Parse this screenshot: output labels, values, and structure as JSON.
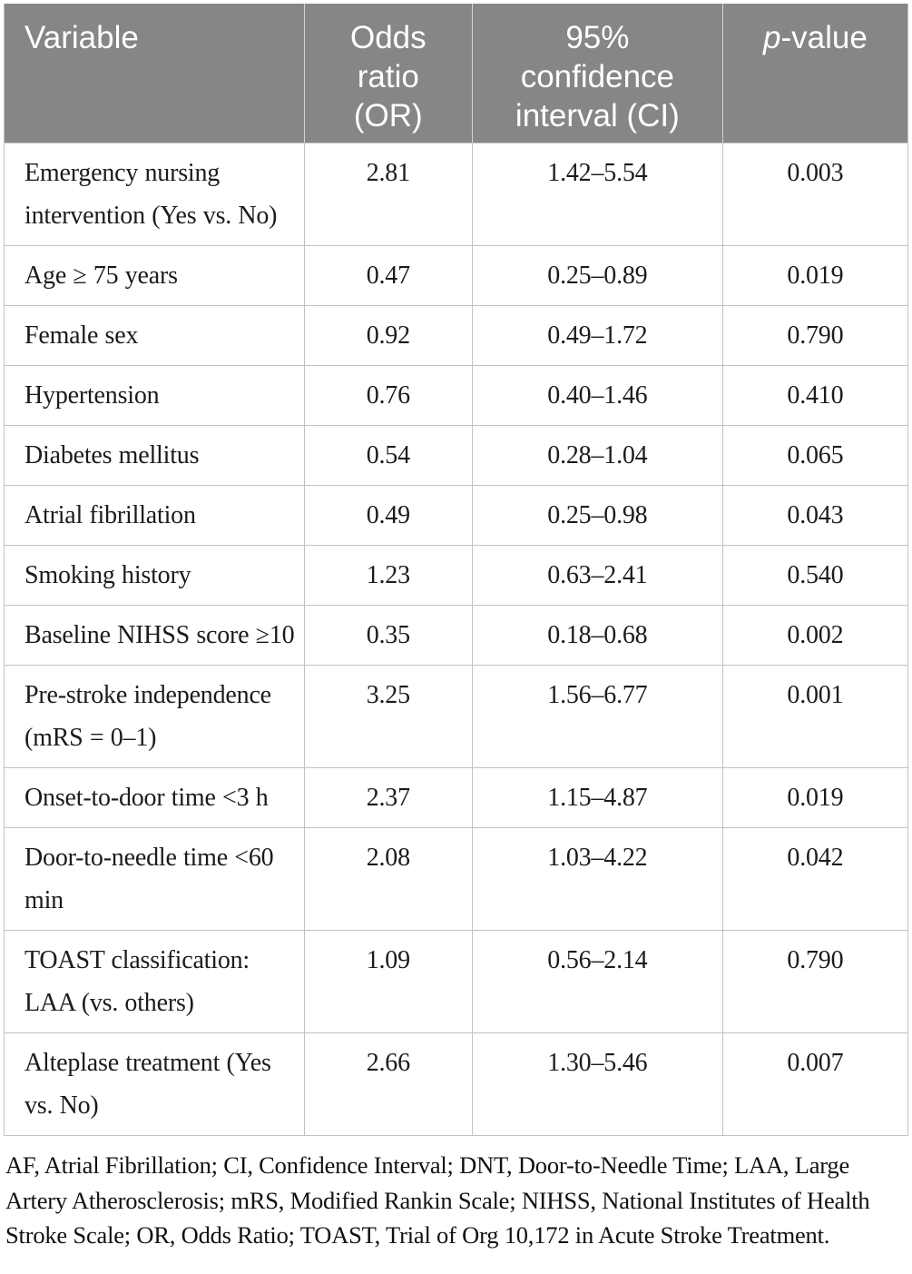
{
  "colors": {
    "header_bg": "#868686",
    "header_text": "#ffffff",
    "header_divider": "#d4d4d4",
    "border": "#c2c2c2",
    "body_text": "#1b1b1b",
    "page_bg": "#ffffff"
  },
  "table": {
    "header": {
      "variable": "Variable",
      "odds_ratio": "Odds ratio (OR)",
      "confidence_interval": "95% confidence interval (CI)",
      "p_symbol": "p",
      "p_suffix": "-value"
    },
    "rows": [
      {
        "variable": "Emergency nursing intervention (Yes vs. No)",
        "or": "2.81",
        "ci": "1.42–5.54",
        "p": "0.003"
      },
      {
        "variable": "Age ≥ 75 years",
        "or": "0.47",
        "ci": "0.25–0.89",
        "p": "0.019"
      },
      {
        "variable": "Female sex",
        "or": "0.92",
        "ci": "0.49–1.72",
        "p": "0.790"
      },
      {
        "variable": "Hypertension",
        "or": "0.76",
        "ci": "0.40–1.46",
        "p": "0.410"
      },
      {
        "variable": "Diabetes mellitus",
        "or": "0.54",
        "ci": "0.28–1.04",
        "p": "0.065"
      },
      {
        "variable": "Atrial fibrillation",
        "or": "0.49",
        "ci": "0.25–0.98",
        "p": "0.043"
      },
      {
        "variable": "Smoking history",
        "or": "1.23",
        "ci": "0.63–2.41",
        "p": "0.540"
      },
      {
        "variable": "Baseline NIHSS score ≥10",
        "or": "0.35",
        "ci": "0.18–0.68",
        "p": "0.002"
      },
      {
        "variable": "Pre-stroke independence (mRS = 0–1)",
        "or": "3.25",
        "ci": "1.56–6.77",
        "p": "0.001"
      },
      {
        "variable": "Onset-to-door time <3 h",
        "or": "2.37",
        "ci": "1.15–4.87",
        "p": "0.019"
      },
      {
        "variable": "Door-to-needle time <60 min",
        "or": "2.08",
        "ci": "1.03–4.22",
        "p": "0.042"
      },
      {
        "variable": "TOAST classification: LAA (vs. others)",
        "or": "1.09",
        "ci": "0.56–2.14",
        "p": "0.790"
      },
      {
        "variable": "Alteplase treatment (Yes vs. No)",
        "or": "2.66",
        "ci": "1.30–5.46",
        "p": "0.007"
      }
    ]
  },
  "footnote": "AF, Atrial Fibrillation; CI, Confidence Interval; DNT, Door-to-Needle Time; LAA, Large Artery Atherosclerosis; mRS, Modified Rankin Scale; NIHSS, National Institutes of Health Stroke Scale; OR, Odds Ratio; TOAST, Trial of Org 10,172 in Acute Stroke Treatment."
}
